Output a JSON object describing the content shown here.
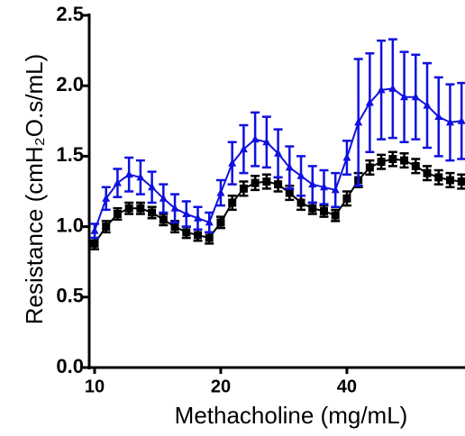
{
  "chart_data": {
    "type": "line",
    "y_label": "Resistance (cmH₂O.s/mL)",
    "x_label": "Methacholine  (mg/mL)",
    "x": [
      0,
      1,
      2,
      3,
      4,
      5,
      6,
      7,
      8,
      9,
      10,
      11,
      12,
      13,
      14,
      15,
      16,
      17,
      18,
      19,
      20,
      21,
      22,
      23,
      24,
      25,
      26,
      27,
      28,
      29,
      30,
      31,
      32
    ],
    "xlim": [
      -0.47,
      32.3
    ],
    "xticks": [
      {
        "value": 0,
        "label": "10"
      },
      {
        "value": 11,
        "label": "20"
      },
      {
        "value": 22,
        "label": "40"
      }
    ],
    "ylim": [
      0,
      2.5
    ],
    "yticks": [
      {
        "value": 0,
        "label": "0.0"
      },
      0.5,
      {
        "value": 1,
        "label": "1.0"
      },
      1.5,
      {
        "value": 2,
        "label": "2.0"
      },
      2.5
    ],
    "series": [
      {
        "color": "#000000",
        "marker": "square",
        "values": [
          0.88,
          1.0,
          1.09,
          1.13,
          1.13,
          1.1,
          1.05,
          1.0,
          0.96,
          0.94,
          0.92,
          1.03,
          1.17,
          1.27,
          1.31,
          1.32,
          1.3,
          1.24,
          1.17,
          1.13,
          1.11,
          1.08,
          1.2,
          1.33,
          1.42,
          1.46,
          1.48,
          1.47,
          1.43,
          1.38,
          1.35,
          1.33,
          1.32
        ],
        "error": [
          0.04,
          0.04,
          0.04,
          0.04,
          0.04,
          0.04,
          0.04,
          0.04,
          0.04,
          0.04,
          0.04,
          0.04,
          0.05,
          0.05,
          0.05,
          0.05,
          0.05,
          0.05,
          0.05,
          0.04,
          0.04,
          0.04,
          0.05,
          0.05,
          0.05,
          0.05,
          0.05,
          0.05,
          0.05,
          0.05,
          0.05,
          0.05,
          0.05
        ]
      },
      {
        "color": "#1010e0",
        "marker": "triangle",
        "values": [
          0.97,
          1.2,
          1.31,
          1.37,
          1.35,
          1.28,
          1.2,
          1.13,
          1.09,
          1.06,
          1.03,
          1.24,
          1.45,
          1.55,
          1.62,
          1.6,
          1.52,
          1.42,
          1.36,
          1.3,
          1.28,
          1.26,
          1.49,
          1.74,
          1.88,
          1.97,
          1.98,
          1.92,
          1.92,
          1.86,
          1.78,
          1.74,
          1.75
        ],
        "error": [
          0.05,
          0.08,
          0.1,
          0.12,
          0.12,
          0.11,
          0.1,
          0.1,
          0.09,
          0.08,
          0.07,
          0.09,
          0.15,
          0.17,
          0.19,
          0.18,
          0.17,
          0.15,
          0.14,
          0.13,
          0.12,
          0.12,
          0.12,
          0.45,
          0.35,
          0.35,
          0.35,
          0.32,
          0.3,
          0.3,
          0.28,
          0.27,
          0.27
        ]
      }
    ]
  }
}
